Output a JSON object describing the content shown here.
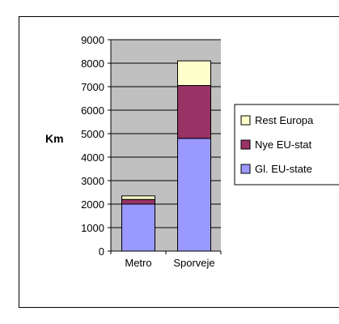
{
  "chart_data": {
    "type": "bar",
    "stacked": true,
    "title": "",
    "xlabel": "",
    "ylabel": "Km",
    "ylim": [
      0,
      9000
    ],
    "yticks": [
      "0",
      "1000",
      "2000",
      "3000",
      "4000",
      "5000",
      "6000",
      "7000",
      "8000",
      "9000"
    ],
    "categories": [
      "Metro",
      "Sporveje"
    ],
    "grid": true,
    "legend_position": "right",
    "series": [
      {
        "name": "Gl. EU-stater",
        "color": "#9999ff",
        "values": [
          2000,
          4800
        ]
      },
      {
        "name": "Nye EU-stater",
        "color": "#993366",
        "values": [
          200,
          2250
        ]
      },
      {
        "name": "Rest Europa",
        "color": "#ffffcc",
        "values": [
          150,
          1050
        ]
      }
    ],
    "legend_order": [
      "Rest Europa",
      "Nye EU-stater",
      "Gl. EU-stater"
    ],
    "legend_visible": [
      "Rest Europa",
      "Nye EU-stat",
      "Gl. EU-state"
    ],
    "plot_background": "#c0c0c0"
  }
}
